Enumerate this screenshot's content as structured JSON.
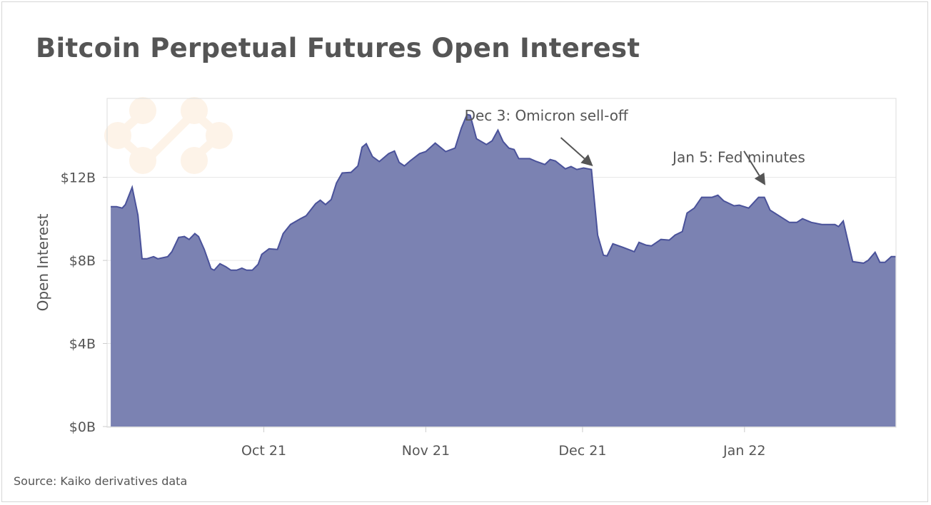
{
  "title": "Bitcoin Perpetual Futures Open Interest",
  "source": "Source: Kaiko derivatives data",
  "chart_data": {
    "type": "area",
    "title": "Bitcoin Perpetual Futures Open Interest",
    "xlabel": "",
    "ylabel": "Open Interest",
    "x_unit": "days since 2021-09-01",
    "y_unit": "USD billions",
    "xlim": [
      0,
      151
    ],
    "ylim": [
      0,
      15.8
    ],
    "grid": "horizontal",
    "colors": {
      "fill": "#7b82b2",
      "line": "#4a529a",
      "grid": "#e6e6e6",
      "watermark": "#fdf3e8"
    },
    "yticks": [
      {
        "value": 0,
        "label": "$0B"
      },
      {
        "value": 4,
        "label": "$4B"
      },
      {
        "value": 8,
        "label": "$8B"
      },
      {
        "value": 12,
        "label": "$12B"
      }
    ],
    "xticks": [
      {
        "value": 30,
        "label": "Oct 21"
      },
      {
        "value": 61,
        "label": "Nov 21"
      },
      {
        "value": 91,
        "label": "Dec 21"
      },
      {
        "value": 122,
        "label": "Jan 22"
      }
    ],
    "annotations": [
      {
        "text": "Dec 3: Omicron sell-off",
        "x": 93,
        "y": 12.4
      },
      {
        "text": "Jan 5: Fed minutes",
        "x": 126,
        "y": 11.0
      }
    ],
    "series": [
      {
        "name": "Open Interest",
        "points": [
          [
            0.7,
            10.59
          ],
          [
            1.8,
            10.59
          ],
          [
            2.9,
            10.52
          ],
          [
            3.5,
            10.69
          ],
          [
            4.8,
            11.52
          ],
          [
            5.9,
            10.18
          ],
          [
            6.7,
            8.08
          ],
          [
            7.6,
            8.08
          ],
          [
            8.9,
            8.18
          ],
          [
            9.7,
            8.08
          ],
          [
            11.6,
            8.18
          ],
          [
            12.4,
            8.42
          ],
          [
            13.7,
            9.11
          ],
          [
            14.8,
            9.15
          ],
          [
            15.7,
            9.01
          ],
          [
            16.8,
            9.29
          ],
          [
            17.5,
            9.15
          ],
          [
            18.6,
            8.53
          ],
          [
            19.9,
            7.6
          ],
          [
            20.5,
            7.53
          ],
          [
            21.6,
            7.84
          ],
          [
            22.7,
            7.7
          ],
          [
            23.7,
            7.53
          ],
          [
            24.8,
            7.53
          ],
          [
            25.8,
            7.63
          ],
          [
            26.7,
            7.53
          ],
          [
            27.8,
            7.53
          ],
          [
            28.9,
            7.81
          ],
          [
            29.6,
            8.29
          ],
          [
            31.0,
            8.56
          ],
          [
            32.6,
            8.53
          ],
          [
            33.7,
            9.29
          ],
          [
            35.1,
            9.73
          ],
          [
            37.0,
            10.01
          ],
          [
            38.1,
            10.15
          ],
          [
            39.9,
            10.73
          ],
          [
            40.8,
            10.9
          ],
          [
            41.8,
            10.69
          ],
          [
            42.9,
            10.93
          ],
          [
            43.9,
            11.73
          ],
          [
            45.0,
            12.21
          ],
          [
            46.7,
            12.24
          ],
          [
            48.0,
            12.55
          ],
          [
            48.8,
            13.45
          ],
          [
            49.6,
            13.62
          ],
          [
            50.8,
            13.0
          ],
          [
            52.1,
            12.76
          ],
          [
            53.9,
            13.14
          ],
          [
            55.0,
            13.27
          ],
          [
            55.9,
            12.72
          ],
          [
            56.9,
            12.55
          ],
          [
            58.0,
            12.79
          ],
          [
            59.8,
            13.14
          ],
          [
            61.0,
            13.24
          ],
          [
            62.8,
            13.65
          ],
          [
            64.8,
            13.24
          ],
          [
            66.6,
            13.41
          ],
          [
            67.8,
            14.37
          ],
          [
            68.9,
            15.03
          ],
          [
            69.5,
            14.99
          ],
          [
            70.7,
            13.86
          ],
          [
            72.6,
            13.58
          ],
          [
            73.7,
            13.76
          ],
          [
            74.8,
            14.27
          ],
          [
            75.8,
            13.72
          ],
          [
            76.9,
            13.41
          ],
          [
            77.9,
            13.34
          ],
          [
            78.8,
            12.9
          ],
          [
            80.9,
            12.9
          ],
          [
            82.2,
            12.76
          ],
          [
            83.8,
            12.62
          ],
          [
            84.8,
            12.86
          ],
          [
            85.8,
            12.79
          ],
          [
            87.7,
            12.41
          ],
          [
            88.8,
            12.52
          ],
          [
            89.9,
            12.38
          ],
          [
            91.2,
            12.45
          ],
          [
            92.7,
            12.38
          ],
          [
            93.9,
            9.22
          ],
          [
            95.0,
            8.25
          ],
          [
            95.7,
            8.22
          ],
          [
            96.8,
            8.8
          ],
          [
            98.7,
            8.63
          ],
          [
            100.5,
            8.46
          ],
          [
            100.9,
            8.42
          ],
          [
            101.8,
            8.87
          ],
          [
            103.2,
            8.73
          ],
          [
            104.2,
            8.7
          ],
          [
            106.0,
            9.01
          ],
          [
            107.6,
            8.98
          ],
          [
            108.7,
            9.22
          ],
          [
            110.1,
            9.39
          ],
          [
            111.0,
            10.28
          ],
          [
            112.4,
            10.52
          ],
          [
            113.8,
            11.04
          ],
          [
            115.8,
            11.04
          ],
          [
            116.9,
            11.14
          ],
          [
            118.0,
            10.87
          ],
          [
            120.0,
            10.63
          ],
          [
            121.0,
            10.66
          ],
          [
            122.8,
            10.52
          ],
          [
            124.7,
            11.04
          ],
          [
            125.8,
            11.04
          ],
          [
            126.9,
            10.42
          ],
          [
            130.6,
            9.83
          ],
          [
            132.0,
            9.83
          ],
          [
            133.1,
            10.01
          ],
          [
            134.8,
            9.83
          ],
          [
            136.8,
            9.73
          ],
          [
            139.3,
            9.73
          ],
          [
            140.0,
            9.63
          ],
          [
            140.9,
            9.9
          ],
          [
            142.7,
            7.94
          ],
          [
            144.8,
            7.87
          ],
          [
            145.7,
            8.01
          ],
          [
            147.0,
            8.39
          ],
          [
            147.9,
            7.91
          ],
          [
            148.9,
            7.91
          ],
          [
            150.1,
            8.18
          ],
          [
            150.9,
            8.18
          ]
        ]
      }
    ]
  }
}
